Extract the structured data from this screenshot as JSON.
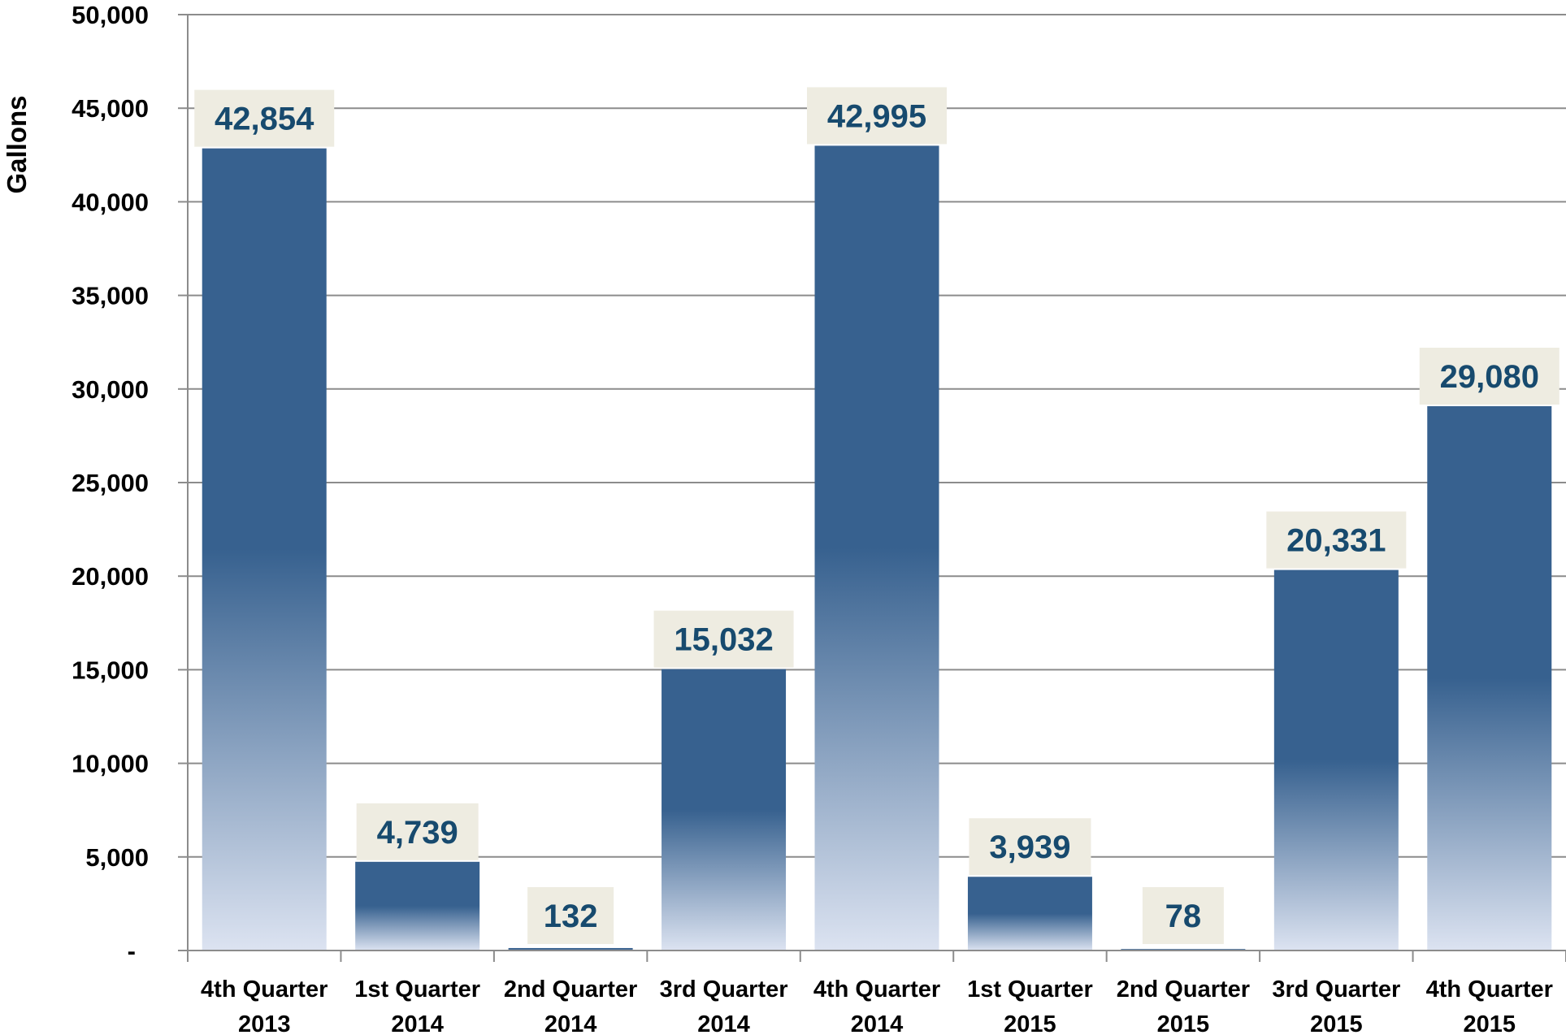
{
  "chart_data": {
    "type": "bar",
    "ylabel": "Gallons",
    "ylim": [
      0,
      50000
    ],
    "y_ticks": [
      {
        "value": 0,
        "label": "-"
      },
      {
        "value": 5000,
        "label": "5,000"
      },
      {
        "value": 10000,
        "label": "10,000"
      },
      {
        "value": 15000,
        "label": "15,000"
      },
      {
        "value": 20000,
        "label": "20,000"
      },
      {
        "value": 25000,
        "label": "25,000"
      },
      {
        "value": 30000,
        "label": "30,000"
      },
      {
        "value": 35000,
        "label": "35,000"
      },
      {
        "value": 40000,
        "label": "40,000"
      },
      {
        "value": 45000,
        "label": "45,000"
      },
      {
        "value": 50000,
        "label": "50,000"
      }
    ],
    "categories": [
      [
        "4th Quarter",
        "2013"
      ],
      [
        "1st Quarter",
        "2014"
      ],
      [
        "2nd Quarter",
        "2014"
      ],
      [
        "3rd Quarter",
        "2014"
      ],
      [
        "4th Quarter",
        "2014"
      ],
      [
        "1st Quarter",
        "2015"
      ],
      [
        "2nd Quarter",
        "2015"
      ],
      [
        "3rd Quarter",
        "2015"
      ],
      [
        "4th Quarter",
        "2015"
      ]
    ],
    "values": [
      42854,
      4739,
      132,
      15032,
      42995,
      3939,
      78,
      20331,
      29080
    ],
    "data_labels": [
      "42,854",
      "4,739",
      "132",
      "15,032",
      "42,995",
      "3,939",
      "78",
      "20,331",
      "29,080"
    ],
    "grid": true,
    "legend": "none",
    "colors": {
      "bar_top": "#37618f",
      "bar_bottom": "#dce3f1",
      "label_bg": "#eeece1",
      "label_text": "#174a6e",
      "gridline": "#8c8c8c",
      "axis": "#8c8c8c"
    }
  }
}
